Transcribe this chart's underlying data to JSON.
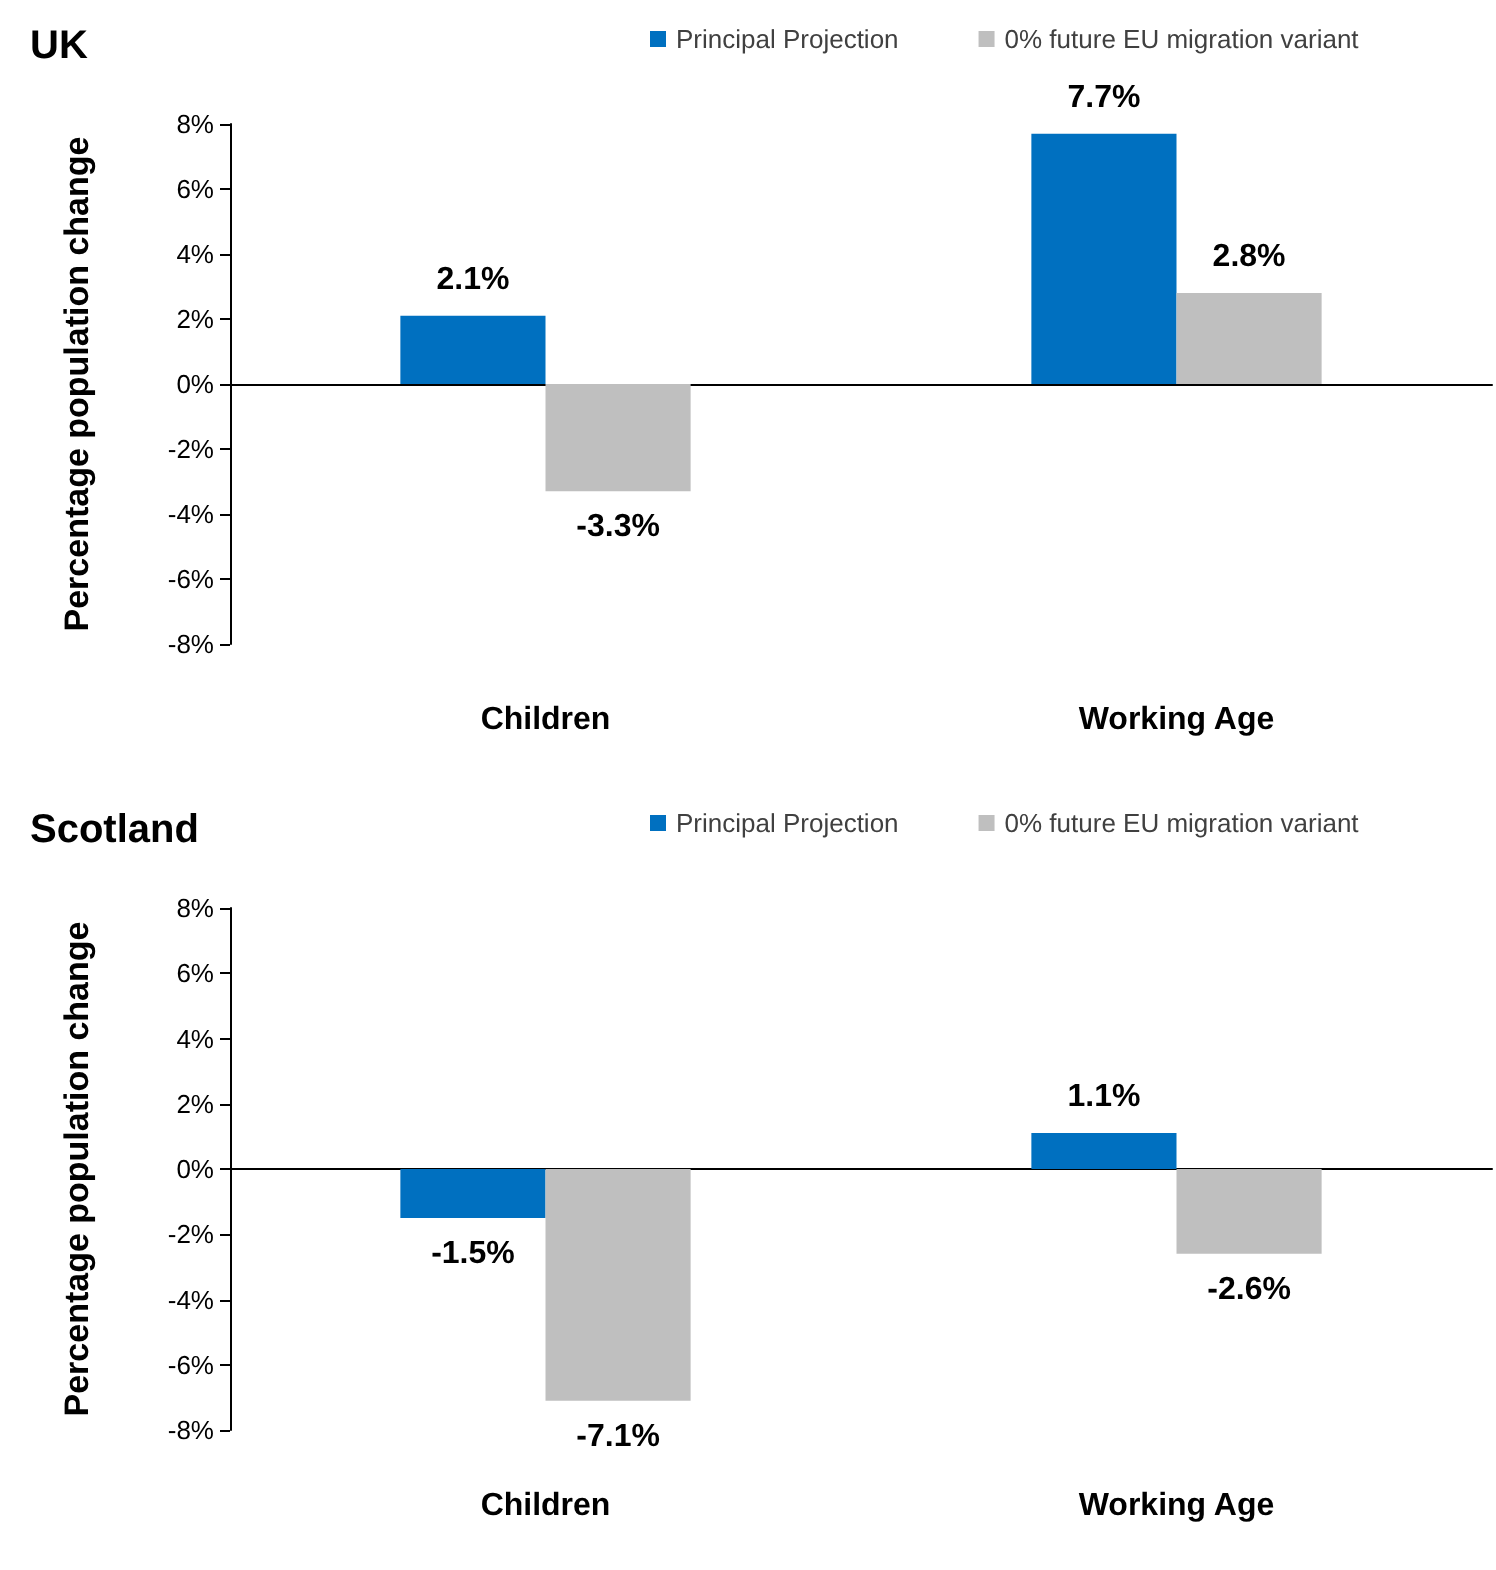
{
  "chart_data": [
    {
      "type": "bar",
      "title": "UK",
      "ylabel": "Percentage population change",
      "categories": [
        "Children",
        "Working Age"
      ],
      "legend": "top",
      "ylim": [
        -8,
        8
      ],
      "yticks": [
        {
          "value": -8,
          "label": "-8%"
        },
        {
          "value": -6,
          "label": "-6%"
        },
        {
          "value": -4,
          "label": "-4%"
        },
        {
          "value": -2,
          "label": "-2%"
        },
        {
          "value": 0,
          "label": "0%"
        },
        {
          "value": 2,
          "label": "2%"
        },
        {
          "value": 4,
          "label": "4%"
        },
        {
          "value": 6,
          "label": "6%"
        },
        {
          "value": 8,
          "label": "8%"
        }
      ],
      "series": [
        {
          "name": "Principal Projection",
          "color": "#0070c0",
          "values": [
            2.1,
            7.7
          ],
          "value_labels": [
            "2.1%",
            "7.7%"
          ]
        },
        {
          "name": "0% future EU migration variant",
          "color": "#bfbfbf",
          "values": [
            -3.3,
            2.8
          ],
          "value_labels": [
            "-3.3%",
            "2.8%"
          ]
        }
      ]
    },
    {
      "type": "bar",
      "title": "Scotland",
      "ylabel": "Percentage population change",
      "categories": [
        "Children",
        "Working Age"
      ],
      "legend": "top",
      "ylim": [
        -8,
        8
      ],
      "yticks": [
        {
          "value": -8,
          "label": "-8%"
        },
        {
          "value": -6,
          "label": "-6%"
        },
        {
          "value": -4,
          "label": "-4%"
        },
        {
          "value": -2,
          "label": "-2%"
        },
        {
          "value": 0,
          "label": "0%"
        },
        {
          "value": 2,
          "label": "2%"
        },
        {
          "value": 4,
          "label": "4%"
        },
        {
          "value": 6,
          "label": "6%"
        },
        {
          "value": 8,
          "label": "8%"
        }
      ],
      "series": [
        {
          "name": "Principal Projection",
          "color": "#0070c0",
          "values": [
            -1.5,
            1.1
          ],
          "value_labels": [
            "-1.5%",
            "1.1%"
          ]
        },
        {
          "name": "0% future EU migration variant",
          "color": "#bfbfbf",
          "values": [
            -7.1,
            -2.6
          ],
          "value_labels": [
            "-7.1%",
            "-2.6%"
          ]
        }
      ]
    }
  ]
}
